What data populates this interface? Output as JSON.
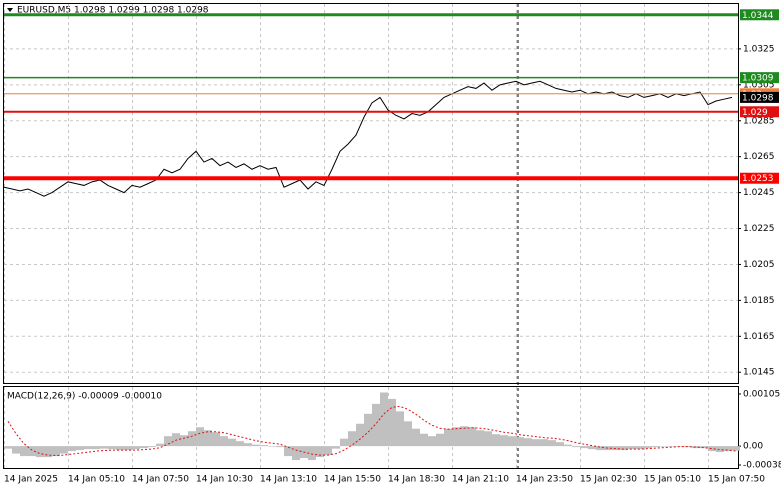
{
  "chart_data": [
    {
      "type": "line",
      "title": "EURUSD,M5  1.0298 1.0299 1.0298 1.0298",
      "color": "#000000",
      "grid": true,
      "ylim": [
        1.0139,
        1.035
      ],
      "yticks": [
        1.0145,
        1.0165,
        1.0185,
        1.0205,
        1.0225,
        1.0245,
        1.0265,
        1.0285,
        1.0305,
        1.0325
      ],
      "categories": [
        "14 Jan 2025",
        null,
        null,
        null,
        null,
        null,
        null,
        null,
        "14 Jan 05:10",
        null,
        null,
        null,
        null,
        null,
        null,
        null,
        "14 Jan 07:50",
        null,
        null,
        null,
        null,
        null,
        null,
        null,
        "14 Jan 10:30",
        null,
        null,
        null,
        null,
        null,
        null,
        null,
        "14 Jan 13:10",
        null,
        null,
        null,
        null,
        null,
        null,
        null,
        "14 Jan 15:50",
        null,
        null,
        null,
        null,
        null,
        null,
        null,
        "14 Jan 18:30",
        null,
        null,
        null,
        null,
        null,
        null,
        null,
        "14 Jan 21:10",
        null,
        null,
        null,
        null,
        null,
        null,
        null,
        "14 Jan 23:50",
        null,
        null,
        null,
        null,
        null,
        null,
        null,
        "15 Jan 02:30",
        null,
        null,
        null,
        null,
        null,
        null,
        null,
        "15 Jan 05:10",
        null,
        null,
        null,
        null,
        null,
        null,
        null,
        "15 Jan 07:50",
        null,
        null,
        null
      ],
      "values": [
        1.0248,
        1.0247,
        1.0246,
        1.0247,
        1.0245,
        1.0243,
        1.0245,
        1.0248,
        1.0251,
        1.025,
        1.0249,
        1.0251,
        1.0252,
        1.0249,
        1.0247,
        1.0245,
        1.0249,
        1.0248,
        1.025,
        1.0252,
        1.0258,
        1.0256,
        1.0258,
        1.0264,
        1.0268,
        1.0262,
        1.0264,
        1.026,
        1.0262,
        1.0259,
        1.0261,
        1.0258,
        1.026,
        1.0258,
        1.0259,
        1.0248,
        1.025,
        1.0252,
        1.0247,
        1.0251,
        1.0249,
        1.0258,
        1.0268,
        1.0272,
        1.0277,
        1.0287,
        1.0295,
        1.0298,
        1.0291,
        1.0288,
        1.0286,
        1.0289,
        1.0288,
        1.029,
        1.0294,
        1.0298,
        1.03,
        1.0302,
        1.0304,
        1.0303,
        1.0306,
        1.0302,
        1.0305,
        1.0306,
        1.0307,
        1.0305,
        1.0306,
        1.0307,
        1.0305,
        1.0303,
        1.0302,
        1.0301,
        1.0302,
        1.03,
        1.0301,
        1.03,
        1.0301,
        1.0299,
        1.0298,
        1.03,
        1.0298,
        1.0299,
        1.03,
        1.0298,
        1.03,
        1.0299,
        1.03,
        1.0301,
        1.0294,
        1.0296,
        1.0297,
        1.0298
      ],
      "levels": [
        {
          "value": 1.03,
          "color": "#f0803c",
          "width": 1
        },
        {
          "value": 1.0344,
          "color": "#1f8a1f",
          "width": 3
        },
        {
          "value": 1.0309,
          "color": "#1f8a1f",
          "width": 1.5
        },
        {
          "value": 1.029,
          "color": "#e01010",
          "width": 2
        },
        {
          "value": 1.0253,
          "color": "#ff0000",
          "width": 4
        },
        {
          "value": 1.0298,
          "color": "#000000",
          "width": 0
        }
      ]
    },
    {
      "type": "macd",
      "title": "MACD(12,26,9) -0.00009 -0.00010",
      "color": "#c0c0c0",
      "signal_color": "#e01010",
      "ylim": [
        -0.00044,
        0.00119
      ],
      "yticks": [
        -0.00038,
        {
          "value": 0,
          "label": "0.00"
        },
        0.00105
      ],
      "values": [
        -5e-05,
        -0.00015,
        -0.0002,
        -0.0002,
        -0.00022,
        -0.00022,
        -0.0002,
        -0.00015,
        -0.0001,
        -8e-05,
        -6e-05,
        -6e-05,
        -5e-05,
        -6e-05,
        -8e-05,
        -8e-05,
        -6e-05,
        -4e-05,
        -2e-05,
        5e-05,
        0.0002,
        0.00026,
        0.00022,
        0.0003,
        0.00038,
        0.00032,
        0.00028,
        0.0002,
        0.00015,
        0.0001,
        6e-05,
        3e-05,
        2e-05,
        0,
        -2e-05,
        -0.0002,
        -0.00028,
        -0.00024,
        -0.00028,
        -0.00022,
        -0.00018,
        -5e-05,
        0.00015,
        0.0003,
        0.00045,
        0.00065,
        0.00085,
        0.00108,
        0.00095,
        0.0007,
        0.0005,
        0.00035,
        0.00025,
        0.0002,
        0.00025,
        0.00035,
        0.00038,
        0.0004,
        0.00038,
        0.00032,
        0.0003,
        0.00024,
        0.00022,
        0.0002,
        0.00018,
        0.00016,
        0.00014,
        0.00014,
        0.00012,
        8e-05,
        3e-05,
        -2e-05,
        -4e-05,
        -6e-05,
        -8e-05,
        -8e-05,
        -8e-05,
        -8e-05,
        -6e-05,
        -6e-05,
        -4e-05,
        -2e-05,
        -1e-05,
        0,
        0,
        -2e-05,
        -4e-05,
        -4e-05,
        -0.0001,
        -0.00012,
        -0.0001,
        -9e-05
      ],
      "signal": [
        0.0005,
        0.00025,
        5e-05,
        -8e-05,
        -0.00015,
        -0.00018,
        -0.00019,
        -0.00018,
        -0.00016,
        -0.00014,
        -0.00012,
        -0.0001,
        -9e-05,
        -8e-05,
        -8e-05,
        -8e-05,
        -8e-05,
        -7e-05,
        -6e-05,
        -3e-05,
        4e-05,
        0.00012,
        0.00016,
        0.0002,
        0.00026,
        0.00029,
        0.00029,
        0.00027,
        0.00023,
        0.00019,
        0.00015,
        0.00011,
        8e-05,
        6e-05,
        4e-05,
        -2e-05,
        -8e-05,
        -0.00012,
        -0.00016,
        -0.00018,
        -0.00018,
        -0.00015,
        -8e-05,
        2e-05,
        0.00014,
        0.00028,
        0.00045,
        0.00065,
        0.00078,
        0.0008,
        0.00074,
        0.00064,
        0.00052,
        0.00042,
        0.00036,
        0.00034,
        0.00035,
        0.00036,
        0.00037,
        0.00036,
        0.00034,
        0.00031,
        0.00028,
        0.00026,
        0.00023,
        0.00021,
        0.00019,
        0.00017,
        0.00016,
        0.00014,
        0.00011,
        7e-05,
        4e-05,
        1e-05,
        -2e-05,
        -4e-05,
        -5e-05,
        -6e-05,
        -6e-05,
        -6e-05,
        -5e-05,
        -4e-05,
        -3e-05,
        -2e-05,
        -1e-05,
        -1e-05,
        -2e-05,
        -3e-05,
        -5e-05,
        -7e-05,
        -8e-05,
        -0.0001
      ]
    }
  ]
}
